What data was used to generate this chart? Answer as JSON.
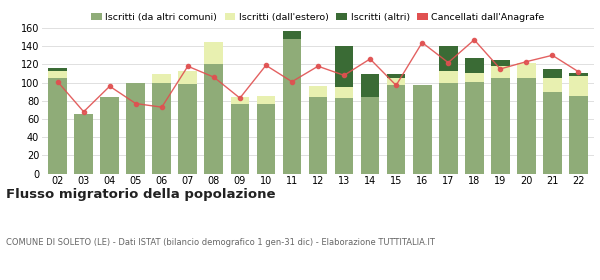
{
  "years": [
    "02",
    "03",
    "04",
    "05",
    "06",
    "07",
    "08",
    "09",
    "10",
    "11",
    "12",
    "13",
    "14",
    "15",
    "16",
    "17",
    "18",
    "19",
    "20",
    "21",
    "22"
  ],
  "iscritti_comuni": [
    105,
    65,
    84,
    100,
    100,
    98,
    120,
    77,
    77,
    148,
    84,
    83,
    84,
    97,
    97,
    100,
    101,
    105,
    105,
    90,
    85
  ],
  "iscritti_estero": [
    8,
    0,
    0,
    0,
    9,
    15,
    25,
    7,
    8,
    0,
    12,
    12,
    0,
    8,
    0,
    13,
    10,
    13,
    17,
    15,
    22
  ],
  "iscritti_altri": [
    3,
    0,
    0,
    0,
    0,
    0,
    0,
    0,
    0,
    9,
    0,
    45,
    25,
    5,
    0,
    27,
    16,
    7,
    0,
    10,
    3
  ],
  "cancellati": [
    101,
    68,
    96,
    77,
    73,
    118,
    106,
    83,
    119,
    101,
    118,
    108,
    126,
    97,
    144,
    122,
    147,
    115,
    123,
    130,
    112
  ],
  "color_comuni": "#8fac78",
  "color_estero": "#e8f0b0",
  "color_altri": "#3a6b35",
  "color_cancellati": "#e05050",
  "title": "Flusso migratorio della popolazione",
  "subtitle": "COMUNE DI SOLETO (LE) - Dati ISTAT (bilancio demografico 1 gen-31 dic) - Elaborazione TUTTITALIA.IT",
  "legend_labels": [
    "Iscritti (da altri comuni)",
    "Iscritti (dall'estero)",
    "Iscritti (altri)",
    "Cancellati dall'Anagrafe"
  ],
  "ylim": [
    0,
    160
  ],
  "yticks": [
    0,
    20,
    40,
    60,
    80,
    100,
    120,
    140,
    160
  ],
  "background_color": "#ffffff",
  "grid_color": "#e0e0e0"
}
